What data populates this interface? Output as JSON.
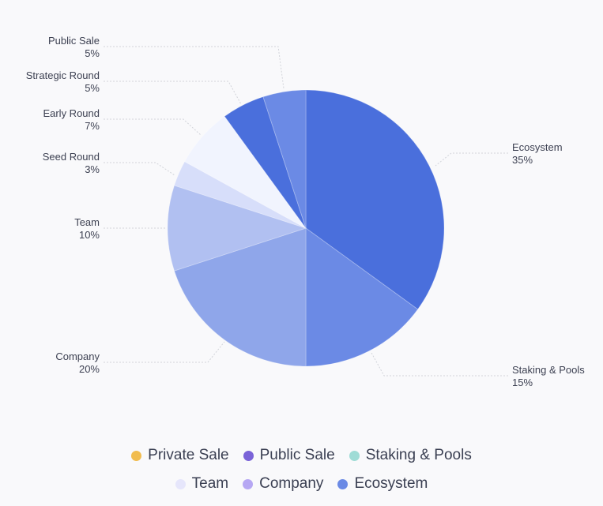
{
  "chart_data": {
    "type": "pie",
    "slices": [
      {
        "label": "Ecosystem",
        "value": 35,
        "value_label": "35%",
        "color": "#4a6fdc"
      },
      {
        "label": "Staking & Pools",
        "value": 15,
        "value_label": "15%",
        "color": "#6b8ae5"
      },
      {
        "label": "Company",
        "value": 20,
        "value_label": "20%",
        "color": "#8fa6ea"
      },
      {
        "label": "Team",
        "value": 10,
        "value_label": "10%",
        "color": "#b1c0f1"
      },
      {
        "label": "Seed Round",
        "value": 3,
        "value_label": "3%",
        "color": "#d7defa"
      },
      {
        "label": "Early Round",
        "value": 7,
        "value_label": "7%",
        "color": "#f1f4fe"
      },
      {
        "label": "Strategic Round",
        "value": 5,
        "value_label": "5%",
        "color": "#4a6fdc"
      },
      {
        "label": "Public Sale",
        "value": 5,
        "value_label": "5%",
        "color": "#6b8ae5"
      }
    ],
    "legend": {
      "placement": "bottom",
      "rows": [
        [
          {
            "label": "Private Sale",
            "color": "#f1bc4e"
          },
          {
            "label": "Public Sale",
            "color": "#7a63d8"
          },
          {
            "label": "Staking & Pools",
            "color": "#9fdcd6"
          }
        ],
        [
          {
            "label": "Team",
            "color": "#e6e6fb"
          },
          {
            "label": "Company",
            "color": "#b6a7f3"
          },
          {
            "label": "Ecosystem",
            "color": "#6b8ae5"
          }
        ]
      ]
    }
  }
}
